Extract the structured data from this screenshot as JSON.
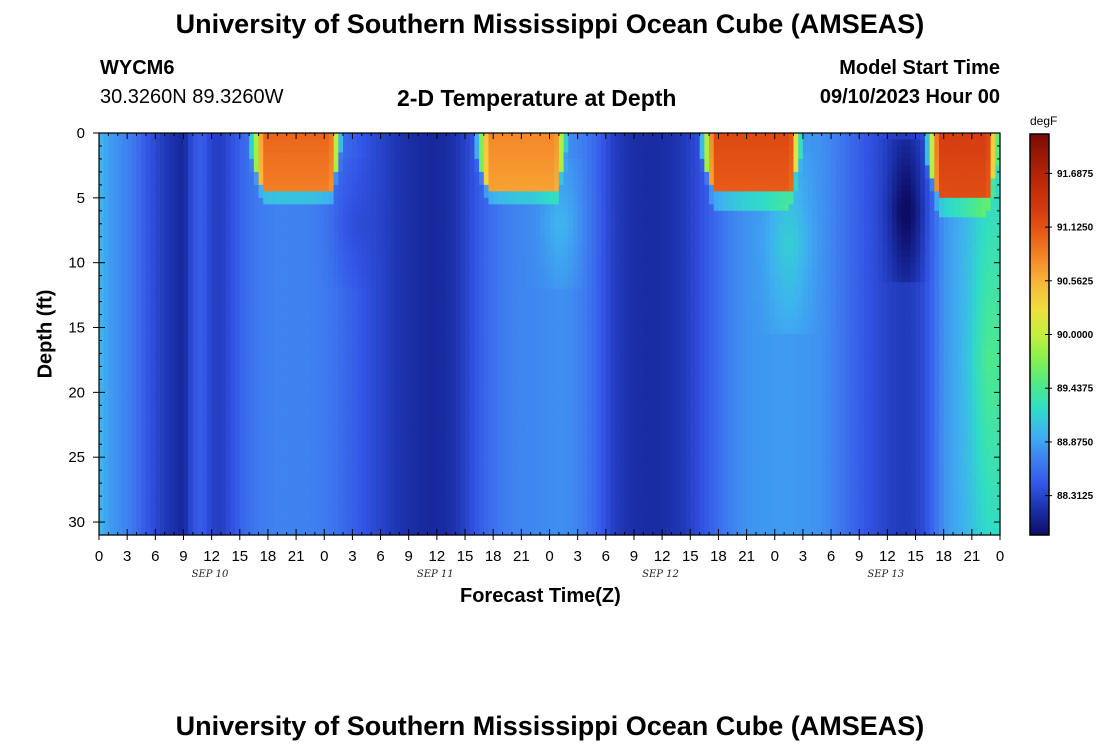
{
  "header": {
    "title": "University of Southern Mississippi Ocean Cube (AMSEAS)",
    "station_id": "WYCM6",
    "coordinates": "30.3260N  89.3260W",
    "plot_title": "2-D Temperature at Depth",
    "model_start_label": "Model Start Time",
    "model_start_value": "09/10/2023 Hour 00"
  },
  "footer": {
    "title": "University of Southern Mississippi Ocean Cube (AMSEAS)"
  },
  "chart_data": {
    "type": "heatmap",
    "title": "2-D Temperature at Depth",
    "xlabel": "Forecast Time(Z)",
    "ylabel": "Depth (ft)",
    "x_hours": [
      0,
      96
    ],
    "y_depth_ft": [
      0,
      31
    ],
    "x_tick_labels": [
      "0",
      "3",
      "6",
      "9",
      "12",
      "15",
      "18",
      "21",
      "0",
      "3",
      "6",
      "9",
      "12",
      "15",
      "18",
      "21",
      "0",
      "3",
      "6",
      "9",
      "12",
      "15",
      "18",
      "21",
      "0",
      "3",
      "6",
      "9",
      "12",
      "15",
      "18",
      "21",
      "0"
    ],
    "date_labels": [
      {
        "label": "SEP 10",
        "hour": 12
      },
      {
        "label": "SEP 11",
        "hour": 36
      },
      {
        "label": "SEP 12",
        "hour": 60
      },
      {
        "label": "SEP 13",
        "hour": 84
      }
    ],
    "y_ticks": [
      0,
      5,
      10,
      15,
      20,
      25,
      30
    ],
    "colorbar": {
      "units": "degF",
      "range": [
        87.9,
        92.1
      ],
      "ticks": [
        "91.6875",
        "91.1250",
        "90.5625",
        "90.0000",
        "89.4375",
        "88.8750",
        "88.3125"
      ],
      "tick_values": [
        91.6875,
        91.125,
        90.5625,
        90.0,
        89.4375,
        88.875,
        88.3125
      ],
      "colors": [
        "#0d0d66",
        "#1a2fa8",
        "#3355e6",
        "#3f7ff0",
        "#3fb0f0",
        "#2fdcc8",
        "#4fea88",
        "#86f04f",
        "#c4ee3f",
        "#eede3f",
        "#f8b93a",
        "#f58a2a",
        "#e85c18",
        "#d43a10",
        "#c02a08",
        "#a01a06",
        "#7a0a04"
      ]
    },
    "columns_hourly_temp_degF": [
      89.0,
      88.86,
      88.78,
      88.7,
      88.6,
      88.45,
      88.34,
      88.24,
      88.16,
      88.1,
      88.4,
      88.48,
      88.3,
      88.26,
      88.38,
      88.5,
      88.6,
      88.66,
      88.69,
      88.7,
      88.71,
      88.71,
      88.7,
      88.69,
      88.66,
      88.62,
      88.56,
      88.5,
      88.43,
      88.37,
      88.31,
      88.25,
      88.2,
      88.16,
      88.13,
      88.12,
      88.12,
      88.14,
      88.2,
      88.29,
      88.41,
      88.52,
      88.6,
      88.66,
      88.7,
      88.72,
      88.73,
      88.74,
      88.76,
      88.78,
      88.76,
      88.72,
      88.64,
      88.53,
      88.38,
      88.26,
      88.2,
      88.16,
      88.14,
      88.14,
      88.15,
      88.18,
      88.22,
      88.29,
      88.38,
      88.48,
      88.58,
      88.67,
      88.74,
      88.79,
      88.81,
      88.82,
      88.83,
      88.83,
      88.83,
      88.82,
      88.81,
      88.78,
      88.72,
      88.64,
      88.56,
      88.48,
      88.41,
      88.35,
      88.3,
      88.26,
      88.24,
      88.28,
      88.38,
      88.58,
      88.79,
      88.88,
      88.93,
      88.97,
      89.02,
      89.06
    ],
    "surface_warm_patches": [
      {
        "t_start": 16.5,
        "t_end": 26,
        "bottom_ft": 4.5,
        "peak_degF": 91.0,
        "shallow_ft": [
          0,
          6
        ]
      },
      {
        "t_start": 40.5,
        "t_end": 50,
        "bottom_ft": 4.5,
        "peak_degF": 90.8,
        "shallow_ft": [
          0,
          6
        ]
      },
      {
        "t_start": 64.5,
        "t_end": 75,
        "bottom_ft": 4.7,
        "peak_degF": 91.2,
        "shallow_ft": [
          0,
          6
        ]
      },
      {
        "t_start": 88.5,
        "t_end": 96,
        "bottom_ft": 5.2,
        "peak_degF": 91.3,
        "shallow_ft": [
          0,
          6
        ]
      }
    ],
    "subsurface_warm_plumes": [
      {
        "center_hour": 26.5,
        "depth_ft": [
          3,
          11
        ],
        "delta_degF": -0.12
      },
      {
        "center_hour": 49.2,
        "depth_ft": [
          3,
          11
        ],
        "delta_degF": 0.2
      },
      {
        "center_hour": 73.5,
        "depth_ft": [
          3,
          14
        ],
        "delta_degF": 0.3
      },
      {
        "center_hour": 95.0,
        "depth_ft": [
          4,
          31
        ],
        "delta_degF": 0.4
      }
    ],
    "cool_notch": {
      "center_hour": 86.0,
      "depth_ft": [
        2,
        10
      ],
      "delta_degF": -0.4
    }
  }
}
